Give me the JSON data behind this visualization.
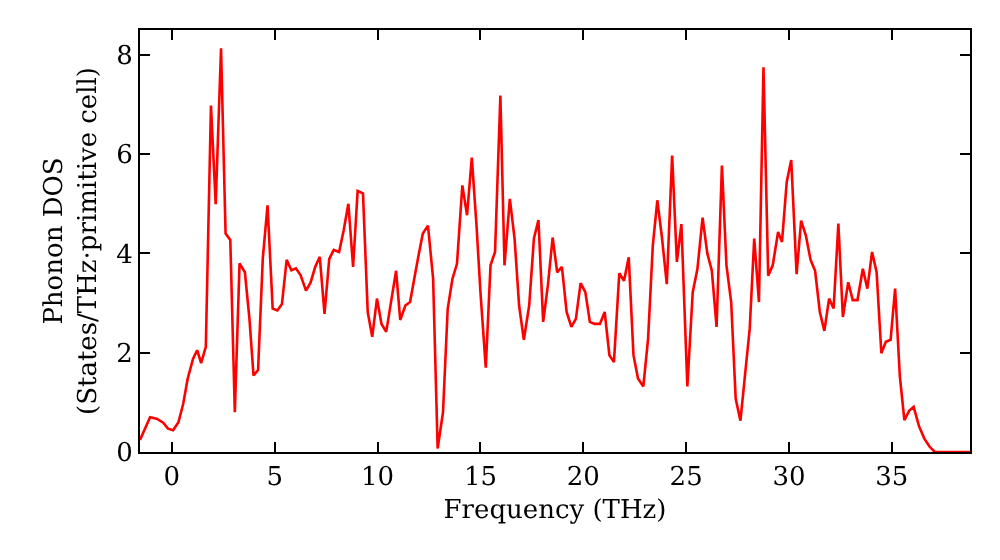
{
  "chart_data": {
    "type": "line",
    "xlabel": "Frequency (THz)",
    "ylabel": "Phonon DOS\n(States/THz·primitive cell)",
    "x": [
      -1.55,
      -1.06,
      -0.74,
      -0.42,
      -0.19,
      0.06,
      0.32,
      0.55,
      0.77,
      1.03,
      1.23,
      1.42,
      1.65,
      1.9,
      2.13,
      2.39,
      2.61,
      2.84,
      3.06,
      3.29,
      3.55,
      3.77,
      3.97,
      4.19,
      4.42,
      4.65,
      4.9,
      5.13,
      5.35,
      5.58,
      5.81,
      6.03,
      6.26,
      6.52,
      6.74,
      6.97,
      7.19,
      7.42,
      7.65,
      7.87,
      8.13,
      8.35,
      8.58,
      8.81,
      9.03,
      9.29,
      9.52,
      9.74,
      9.97,
      10.19,
      10.42,
      10.68,
      10.9,
      11.1,
      11.35,
      11.58,
      11.84,
      12.0,
      12.2,
      12.45,
      12.7,
      12.92,
      13.18,
      13.41,
      13.64,
      13.86,
      14.12,
      14.35,
      14.58,
      14.81,
      15.0,
      15.26,
      15.49,
      15.71,
      15.97,
      16.17,
      16.43,
      16.66,
      16.88,
      17.11,
      17.37,
      17.6,
      17.82,
      18.05,
      18.28,
      18.51,
      18.73,
      18.96,
      19.19,
      19.42,
      19.64,
      19.87,
      20.1,
      20.32,
      20.55,
      20.81,
      21.04,
      21.27,
      21.49,
      21.75,
      21.98,
      22.21,
      22.44,
      22.66,
      22.92,
      23.15,
      23.38,
      23.6,
      23.83,
      24.06,
      24.32,
      24.55,
      24.77,
      25.06,
      25.32,
      25.55,
      25.8,
      26.03,
      26.25,
      26.48,
      26.74,
      26.96,
      27.19,
      27.41,
      27.64,
      27.86,
      28.09,
      28.31,
      28.54,
      28.76,
      28.99,
      29.21,
      29.47,
      29.66,
      29.89,
      30.11,
      30.37,
      30.59,
      30.82,
      31.05,
      31.27,
      31.5,
      31.72,
      31.95,
      32.17,
      32.4,
      32.62,
      32.88,
      33.1,
      33.33,
      33.59,
      33.81,
      34.04,
      34.26,
      34.49,
      34.71,
      34.94,
      35.16,
      35.39,
      35.61,
      35.84,
      36.06,
      36.32,
      36.58,
      36.83,
      37.09,
      38.8
    ],
    "series": [
      {
        "color": "#ff0000",
        "values": [
          0.24,
          0.7,
          0.67,
          0.59,
          0.47,
          0.44,
          0.6,
          0.97,
          1.48,
          1.88,
          2.05,
          1.79,
          2.12,
          6.98,
          4.99,
          8.13,
          4.4,
          4.27,
          0.8,
          3.8,
          3.62,
          2.68,
          1.54,
          1.65,
          3.9,
          4.97,
          2.89,
          2.85,
          2.98,
          3.87,
          3.66,
          3.7,
          3.56,
          3.25,
          3.41,
          3.73,
          3.93,
          2.78,
          3.89,
          4.07,
          4.03,
          4.46,
          5.0,
          3.73,
          5.26,
          5.21,
          2.82,
          2.32,
          3.09,
          2.58,
          2.42,
          3.09,
          3.65,
          2.66,
          2.95,
          3.02,
          3.62,
          3.98,
          4.4,
          4.56,
          3.49,
          0.07,
          0.8,
          2.89,
          3.49,
          3.79,
          5.37,
          4.77,
          5.93,
          4.56,
          3.22,
          1.7,
          3.76,
          4.03,
          7.18,
          3.76,
          5.1,
          4.3,
          2.95,
          2.26,
          2.95,
          4.3,
          4.67,
          2.62,
          3.36,
          4.32,
          3.62,
          3.73,
          2.82,
          2.52,
          2.68,
          3.4,
          3.22,
          2.62,
          2.58,
          2.58,
          2.82,
          1.95,
          1.81,
          3.6,
          3.45,
          3.92,
          1.95,
          1.48,
          1.32,
          2.28,
          4.16,
          5.07,
          4.3,
          3.38,
          5.97,
          3.83,
          4.59,
          1.32,
          3.22,
          3.69,
          4.72,
          4.0,
          3.65,
          2.52,
          5.77,
          3.76,
          3.02,
          1.07,
          0.63,
          1.54,
          2.48,
          4.3,
          3.02,
          7.75,
          3.55,
          3.76,
          4.43,
          4.23,
          5.44,
          5.88,
          3.58,
          4.66,
          4.36,
          3.87,
          3.65,
          2.82,
          2.44,
          3.09,
          2.89,
          4.6,
          2.72,
          3.42,
          3.06,
          3.06,
          3.69,
          3.29,
          4.03,
          3.62,
          1.99,
          2.22,
          2.26,
          3.29,
          1.52,
          0.64,
          0.83,
          0.91,
          0.52,
          0.27,
          0.11,
          0,
          0
        ]
      }
    ],
    "xlim": [
      -1.55,
      38.8
    ],
    "xticks": [
      0,
      5,
      10,
      15,
      20,
      25,
      30,
      35
    ],
    "ylim": [
      0,
      8.5
    ],
    "yticks": [
      0,
      2,
      4,
      6,
      8
    ],
    "grid": false,
    "marker": "none",
    "line_style": "solid"
  }
}
